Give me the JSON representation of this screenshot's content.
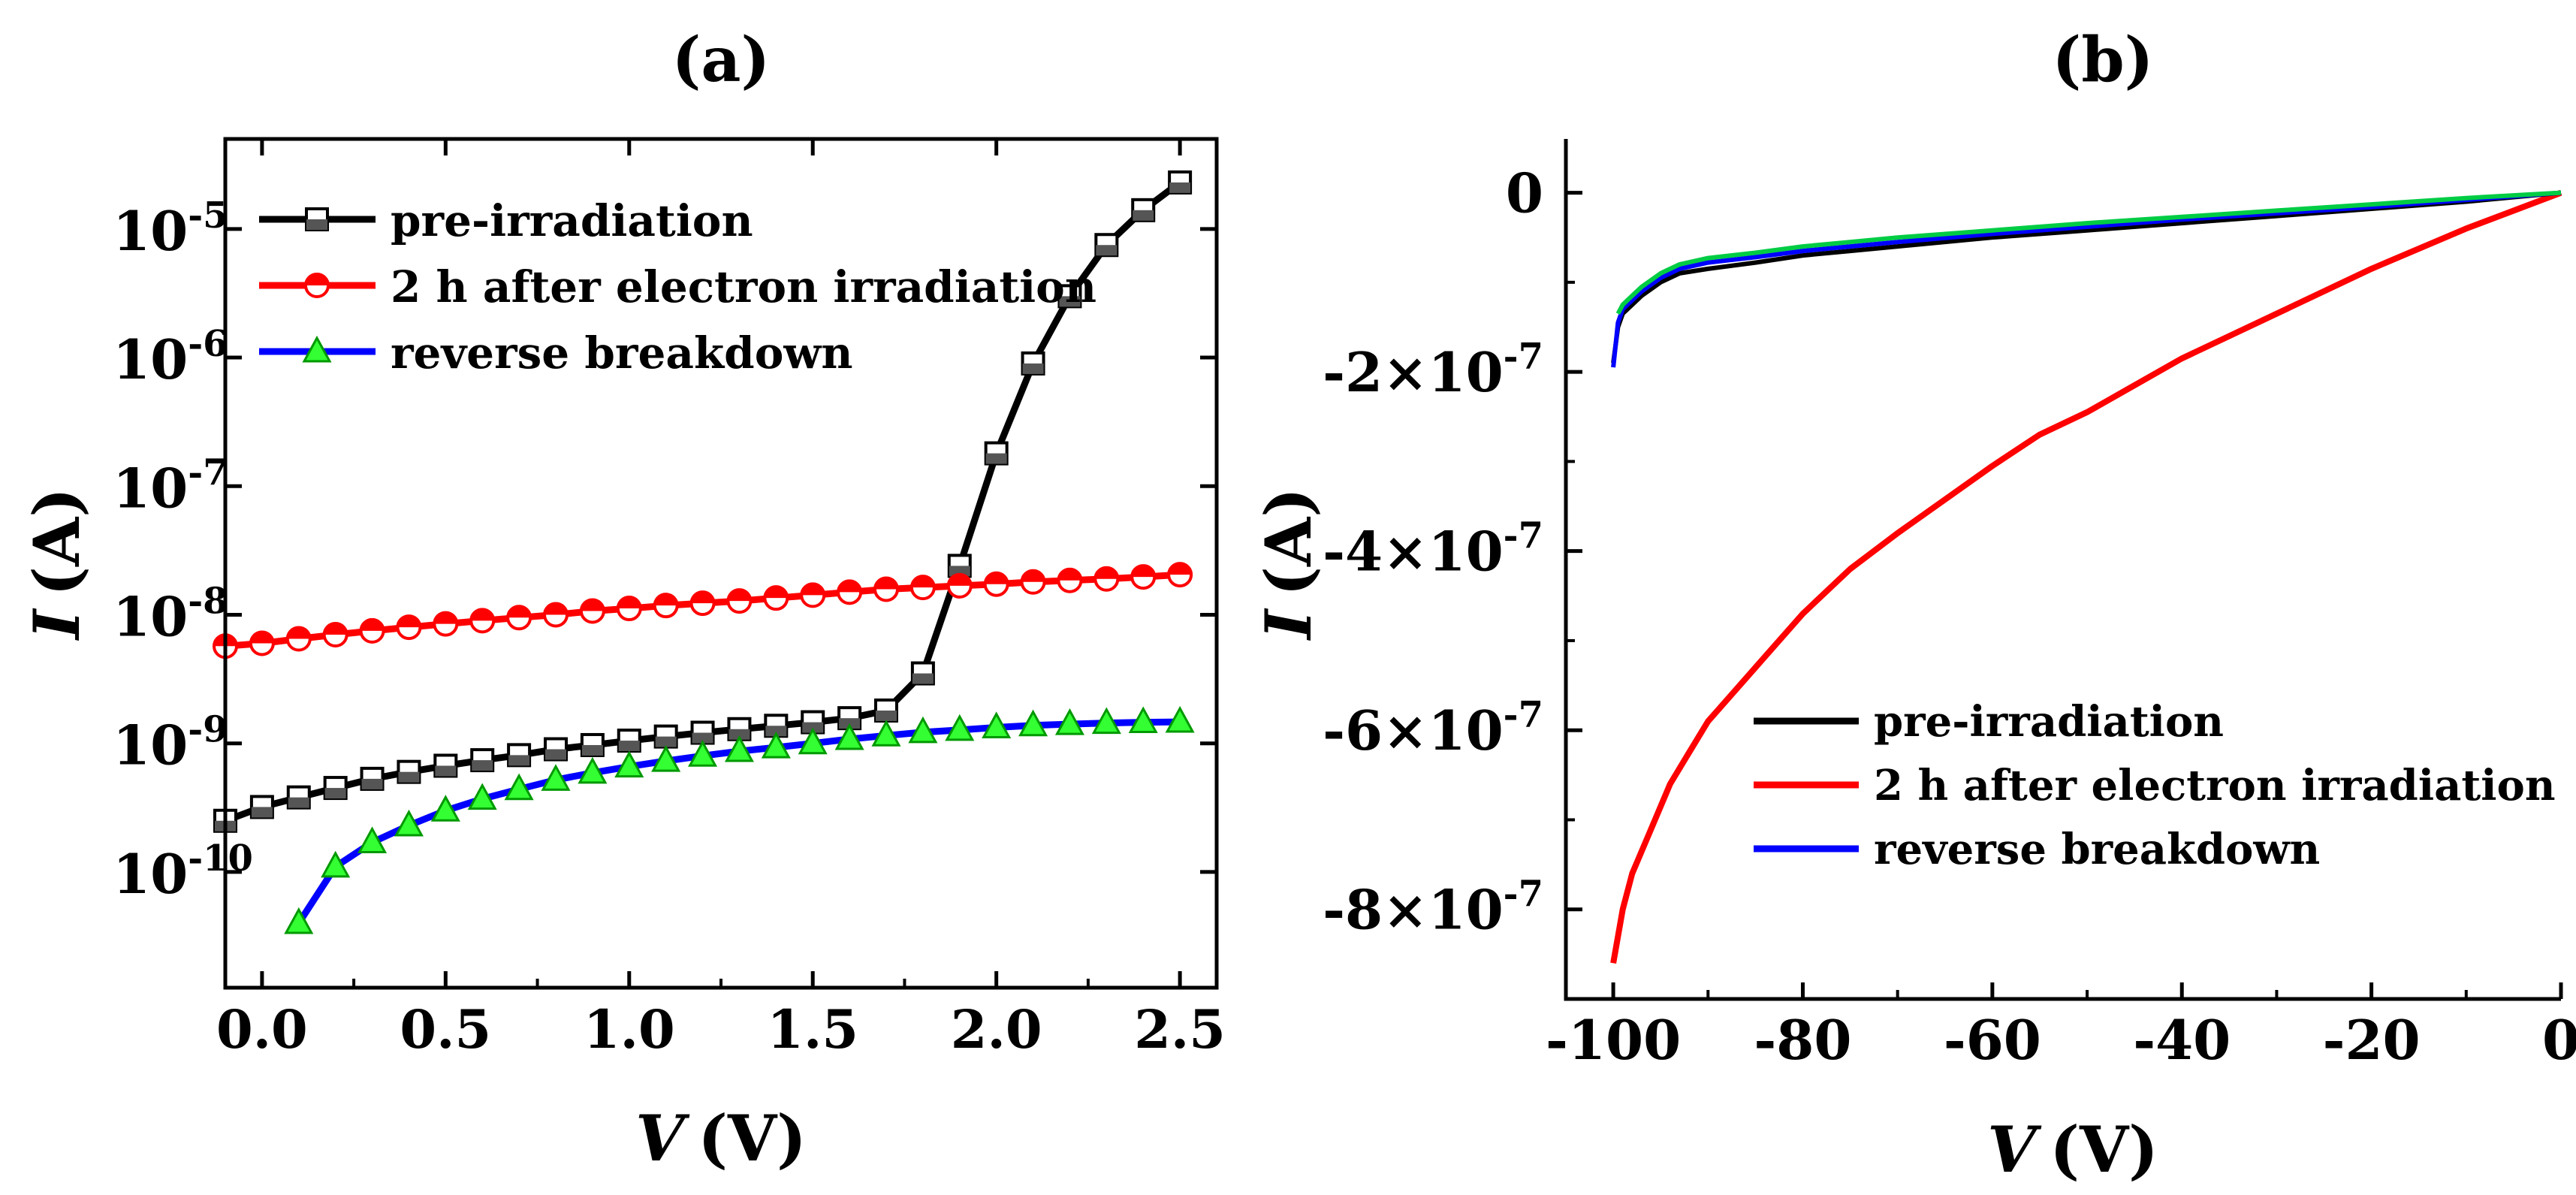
{
  "chart_data": [
    {
      "panel_label": "(a)",
      "type": "line",
      "yscale": "log",
      "xlabel_var": "V",
      "xlabel_unit": "(V)",
      "ylabel_var": "I",
      "ylabel_unit": "(A)",
      "xlim": [
        -0.1,
        2.6
      ],
      "ylim_log10": [
        -10.9,
        -4.3
      ],
      "xticks": [
        {
          "v": 0.0,
          "label": "0.0"
        },
        {
          "v": 0.5,
          "label": "0.5"
        },
        {
          "v": 1.0,
          "label": "1.0"
        },
        {
          "v": 1.5,
          "label": "1.5"
        },
        {
          "v": 2.0,
          "label": "2.0"
        },
        {
          "v": 2.5,
          "label": "2.5"
        }
      ],
      "yticks": [
        {
          "exp": -10,
          "base": "10",
          "label": "-10"
        },
        {
          "exp": -9,
          "base": "10",
          "label": "-9"
        },
        {
          "exp": -8,
          "base": "10",
          "label": "-8"
        },
        {
          "exp": -7,
          "base": "10",
          "label": "-7"
        },
        {
          "exp": -6,
          "base": "10",
          "label": "-6"
        },
        {
          "exp": -5,
          "base": "10",
          "label": "-5"
        }
      ],
      "x": [
        -0.1,
        0.0,
        0.1,
        0.2,
        0.3,
        0.4,
        0.5,
        0.6,
        0.7,
        0.8,
        0.9,
        1.0,
        1.1,
        1.2,
        1.3,
        1.4,
        1.5,
        1.6,
        1.7,
        1.8,
        1.9,
        2.0,
        2.1,
        2.2,
        2.3,
        2.4,
        2.5
      ],
      "series": [
        {
          "name": "pre-irradiation",
          "line_color": "#000000",
          "marker": "square",
          "marker_fill": "#ffffff",
          "marker_stroke": "#000000",
          "x": [
            -0.1,
            0.0,
            0.1,
            0.2,
            0.3,
            0.4,
            0.5,
            0.6,
            0.7,
            0.8,
            0.9,
            1.0,
            1.1,
            1.2,
            1.3,
            1.4,
            1.5,
            1.6,
            1.7,
            1.8,
            1.9,
            2.0,
            2.1,
            2.2,
            2.3,
            2.4,
            2.5
          ],
          "y": [
            2.5e-10,
            3.2e-10,
            3.8e-10,
            4.5e-10,
            5.3e-10,
            6e-10,
            6.7e-10,
            7.4e-10,
            8.1e-10,
            9e-10,
            9.7e-10,
            1.05e-09,
            1.13e-09,
            1.21e-09,
            1.29e-09,
            1.37e-09,
            1.46e-09,
            1.57e-09,
            1.8e-09,
            3.5e-09,
            2.4e-08,
            1.8e-07,
            9e-07,
            3e-06,
            7.5e-06,
            1.4e-05,
            2.3e-05
          ]
        },
        {
          "name": "2 h after electron irradiation",
          "line_color": "#ff0000",
          "marker": "circle",
          "marker_fill": "#ffffff",
          "marker_stroke": "#ff0000",
          "x": [
            -0.1,
            0.0,
            0.1,
            0.2,
            0.3,
            0.4,
            0.5,
            0.6,
            0.7,
            0.8,
            0.9,
            1.0,
            1.1,
            1.2,
            1.3,
            1.4,
            1.5,
            1.6,
            1.7,
            1.8,
            1.9,
            2.0,
            2.1,
            2.2,
            2.3,
            2.4,
            2.5
          ],
          "y": [
            5.7e-09,
            6e-09,
            6.5e-09,
            7e-09,
            7.5e-09,
            8e-09,
            8.5e-09,
            9e-09,
            9.5e-09,
            1e-08,
            1.07e-08,
            1.12e-08,
            1.18e-08,
            1.23e-08,
            1.28e-08,
            1.35e-08,
            1.42e-08,
            1.5e-08,
            1.58e-08,
            1.63e-08,
            1.68e-08,
            1.73e-08,
            1.8e-08,
            1.85e-08,
            1.9e-08,
            1.97e-08,
            2.05e-08
          ]
        },
        {
          "name": "reverse breakdown",
          "line_color": "#0000ff",
          "marker": "triangle",
          "marker_fill": "#33ff33",
          "marker_stroke": "#009900",
          "x": [
            0.1,
            0.2,
            0.3,
            0.4,
            0.5,
            0.6,
            0.7,
            0.8,
            0.9,
            1.0,
            1.1,
            1.2,
            1.3,
            1.4,
            1.5,
            1.6,
            1.7,
            1.8,
            1.9,
            2.0,
            2.1,
            2.2,
            2.3,
            2.4,
            2.5
          ],
          "y": [
            4e-11,
            1.1e-10,
            1.7e-10,
            2.3e-10,
            3e-10,
            3.7e-10,
            4.4e-10,
            5.2e-10,
            5.9e-10,
            6.6e-10,
            7.3e-10,
            8e-10,
            8.7e-10,
            9.3e-10,
            1e-09,
            1.08e-09,
            1.15e-09,
            1.22e-09,
            1.27e-09,
            1.33e-09,
            1.38e-09,
            1.41e-09,
            1.44e-09,
            1.46e-09,
            1.47e-09
          ]
        }
      ],
      "legend_position": "top-left"
    },
    {
      "panel_label": "(b)",
      "type": "line",
      "yscale": "linear",
      "xlabel_var": "V",
      "xlabel_unit": "(V)",
      "ylabel_var": "I",
      "ylabel_unit": "(A)",
      "xlim": [
        -105,
        0
      ],
      "ylim": [
        -9e-07,
        6e-08
      ],
      "xticks": [
        {
          "v": -100,
          "label": "-100"
        },
        {
          "v": -80,
          "label": "-80"
        },
        {
          "v": -60,
          "label": "-60"
        },
        {
          "v": -40,
          "label": "-40"
        },
        {
          "v": -20,
          "label": "-20"
        },
        {
          "v": 0,
          "label": "0"
        }
      ],
      "yticks": [
        {
          "v": 0,
          "label": "0",
          "base": "",
          "exp": ""
        },
        {
          "v": -2e-07,
          "label": "-2×10",
          "base": "",
          "exp": "-7"
        },
        {
          "v": -4e-07,
          "label": "-4×10",
          "base": "",
          "exp": "-7"
        },
        {
          "v": -6e-07,
          "label": "-6×10",
          "base": "",
          "exp": "-7"
        },
        {
          "v": -8e-07,
          "label": "-8×10",
          "base": "",
          "exp": "-7"
        }
      ],
      "series": [
        {
          "name": "pre-irradiation",
          "line_color": "#000000",
          "x": [
            -100,
            -99.5,
            -99,
            -98,
            -97,
            -95,
            -93,
            -90,
            -85,
            -80,
            -75,
            -70,
            -60,
            -50,
            -40,
            -30,
            -20,
            -10,
            0
          ],
          "y": [
            -1.9e-07,
            -1.5e-07,
            -1.35e-07,
            -1.25e-07,
            -1.15e-07,
            -1e-07,
            -9e-08,
            -8.5e-08,
            -7.8e-08,
            -7e-08,
            -6.5e-08,
            -6e-08,
            -5e-08,
            -4.2e-08,
            -3.4e-08,
            -2.6e-08,
            -1.8e-08,
            -1e-08,
            0
          ]
        },
        {
          "name": "2 h after electron irradiation",
          "line_color": "#ff0000",
          "x": [
            -100,
            -99,
            -98,
            -96,
            -94,
            -92,
            -90,
            -85,
            -80,
            -75,
            -70,
            -60,
            -55,
            -50,
            -45,
            -40,
            -30,
            -20,
            -10,
            0
          ],
          "y": [
            -8.6e-07,
            -8e-07,
            -7.6e-07,
            -7.1e-07,
            -6.6e-07,
            -6.25e-07,
            -5.9e-07,
            -5.3e-07,
            -4.7e-07,
            -4.2e-07,
            -3.8e-07,
            -3.05e-07,
            -2.7e-07,
            -2.45e-07,
            -2.15e-07,
            -1.85e-07,
            -1.35e-07,
            -8.5e-08,
            -4e-08,
            0
          ]
        },
        {
          "name": "reverse breakdown",
          "line_color": "#0000ff",
          "x": [
            -100,
            -99.5,
            -99,
            -98,
            -97,
            -95,
            -93,
            -90,
            -85,
            -80,
            -75,
            -70,
            -60,
            -50,
            -40,
            -30,
            -20,
            -10,
            0
          ],
          "y": [
            -1.95e-07,
            -1.45e-07,
            -1.3e-07,
            -1.2e-07,
            -1.1e-07,
            -9.5e-08,
            -8.5e-08,
            -7.8e-08,
            -7.2e-08,
            -6.5e-08,
            -6e-08,
            -5.5e-08,
            -4.6e-08,
            -3.8e-08,
            -3e-08,
            -2.3e-08,
            -1.6e-08,
            -8e-09,
            0
          ]
        },
        {
          "name": "",
          "line_color": "#00cc44",
          "x": [
            -99.5,
            -99,
            -98,
            -97,
            -95,
            -93,
            -90,
            -85,
            -80,
            -75,
            -70,
            -60,
            -50,
            -40,
            -30,
            -20,
            -10,
            0
          ],
          "y": [
            -1.35e-07,
            -1.25e-07,
            -1.15e-07,
            -1.05e-07,
            -9e-08,
            -8e-08,
            -7.3e-08,
            -6.7e-08,
            -6e-08,
            -5.5e-08,
            -5e-08,
            -4.2e-08,
            -3.4e-08,
            -2.7e-08,
            -2e-08,
            -1.3e-08,
            -6e-09,
            0
          ]
        }
      ],
      "legend_entries": [
        "pre-irradiation",
        "2 h after electron irradiation",
        "reverse breakdown"
      ],
      "legend_position": "bottom-center"
    }
  ]
}
